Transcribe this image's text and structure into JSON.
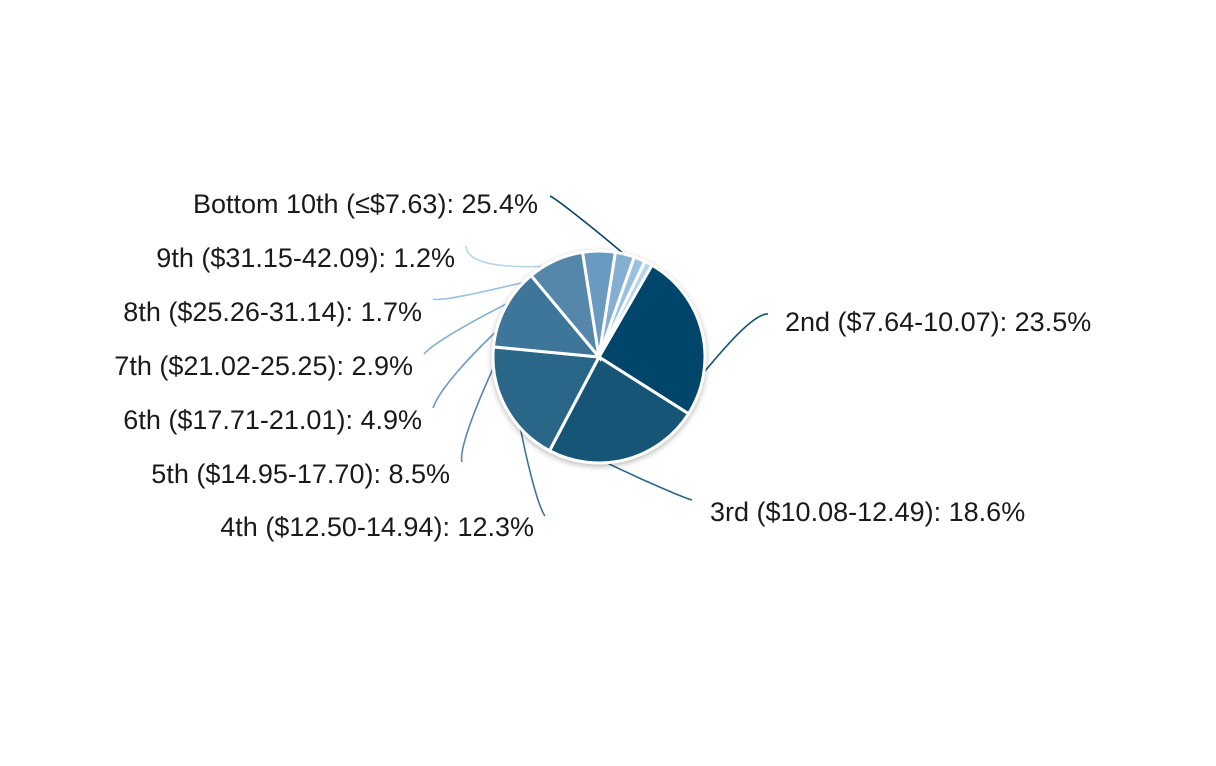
{
  "chart_data": {
    "type": "pie",
    "title": "",
    "series": [
      {
        "values": [
          {
            "label": "Bottom 10th (≤$7.63): 25.4%",
            "category": "Bottom 10th (≤$7.63)",
            "value": 25.4,
            "color": "#03456a"
          },
          {
            "label": "2nd ($7.64-10.07): 23.5%",
            "category": "2nd ($7.64-10.07)",
            "value": 23.5,
            "color": "#155576"
          },
          {
            "label": "3rd ($10.08-12.49): 18.6%",
            "category": "3rd ($10.08-12.49)",
            "value": 18.6,
            "color": "#2a6687"
          },
          {
            "label": "4th ($12.50-14.94): 12.3%",
            "category": "4th ($12.50-14.94)",
            "value": 12.3,
            "color": "#3e7699"
          },
          {
            "label": "5th ($14.95-17.70): 8.5%",
            "category": "5th ($14.95-17.70)",
            "value": 8.5,
            "color": "#5587ab"
          },
          {
            "label": "6th ($17.71-21.01): 4.9%",
            "category": "6th ($17.71-21.01)",
            "value": 4.9,
            "color": "#6b9ac0"
          },
          {
            "label": "7th ($21.02-25.25): 2.9%",
            "category": "7th ($21.02-25.25)",
            "value": 2.9,
            "color": "#84aed2"
          },
          {
            "label": "8th ($25.26-31.14): 1.7%",
            "category": "8th ($25.26-31.14)",
            "value": 1.7,
            "color": "#9bc1e1"
          },
          {
            "label": "9th ($31.15-42.09): 1.2%",
            "category": "9th ($31.15-42.09)",
            "value": 1.2,
            "color": "#b5d5ef"
          }
        ]
      }
    ],
    "start_position": "slice boundary at top (~1 o'clock), proceeding clockwise",
    "legend": "none"
  }
}
